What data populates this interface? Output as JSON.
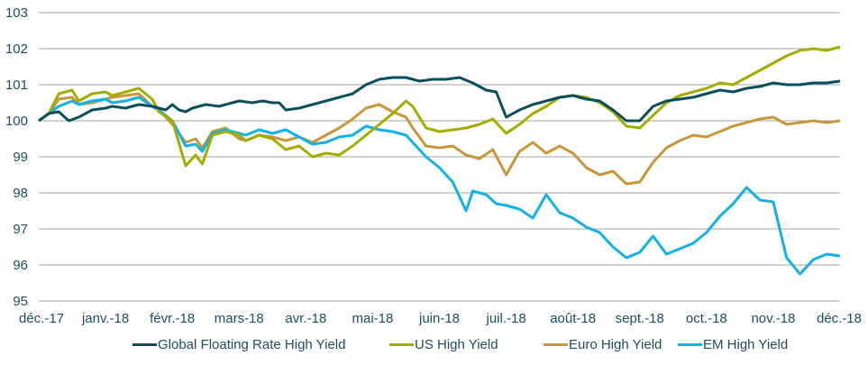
{
  "chart_data": {
    "type": "line",
    "title": "",
    "xlabel": "",
    "ylabel": "",
    "ylim": [
      95,
      103
    ],
    "yticks": [
      "95",
      "96",
      "97",
      "98",
      "99",
      "100",
      "101",
      "102",
      "103"
    ],
    "grid": true,
    "legend_position": "bottom",
    "categories": [
      "déc.-17",
      "janv.-18",
      "févr.-18",
      "mars-18",
      "avr.-18",
      "mai-18",
      "juin-18",
      "juil.-18",
      "août-18",
      "sept.-18",
      "oct.-18",
      "nov.-18",
      "déc.-18"
    ],
    "x_note": "x values are months since déc.-17 (0 = déc.-17, 12 = déc.-18)",
    "series": [
      {
        "name": "Global Floating Rate High Yield",
        "color": "#0b4f5c",
        "points": [
          [
            0,
            100.0
          ],
          [
            0.15,
            100.2
          ],
          [
            0.3,
            100.25
          ],
          [
            0.45,
            100.0
          ],
          [
            0.6,
            100.1
          ],
          [
            0.8,
            100.3
          ],
          [
            1.0,
            100.35
          ],
          [
            1.1,
            100.4
          ],
          [
            1.3,
            100.35
          ],
          [
            1.5,
            100.45
          ],
          [
            1.7,
            100.4
          ],
          [
            1.9,
            100.3
          ],
          [
            2.0,
            100.45
          ],
          [
            2.1,
            100.3
          ],
          [
            2.2,
            100.25
          ],
          [
            2.3,
            100.35
          ],
          [
            2.5,
            100.45
          ],
          [
            2.7,
            100.4
          ],
          [
            2.9,
            100.5
          ],
          [
            3.0,
            100.55
          ],
          [
            3.2,
            100.5
          ],
          [
            3.35,
            100.55
          ],
          [
            3.5,
            100.5
          ],
          [
            3.6,
            100.5
          ],
          [
            3.7,
            100.3
          ],
          [
            3.9,
            100.35
          ],
          [
            4.1,
            100.45
          ],
          [
            4.3,
            100.55
          ],
          [
            4.5,
            100.65
          ],
          [
            4.7,
            100.75
          ],
          [
            4.9,
            101.0
          ],
          [
            5.1,
            101.15
          ],
          [
            5.3,
            101.2
          ],
          [
            5.5,
            101.2
          ],
          [
            5.7,
            101.1
          ],
          [
            5.9,
            101.15
          ],
          [
            6.1,
            101.15
          ],
          [
            6.3,
            101.2
          ],
          [
            6.5,
            101.05
          ],
          [
            6.7,
            100.85
          ],
          [
            6.85,
            100.8
          ],
          [
            7.0,
            100.1
          ],
          [
            7.2,
            100.3
          ],
          [
            7.4,
            100.45
          ],
          [
            7.6,
            100.55
          ],
          [
            7.8,
            100.65
          ],
          [
            8.0,
            100.7
          ],
          [
            8.2,
            100.6
          ],
          [
            8.4,
            100.55
          ],
          [
            8.6,
            100.3
          ],
          [
            8.8,
            100.0
          ],
          [
            9.0,
            100.0
          ],
          [
            9.2,
            100.4
          ],
          [
            9.4,
            100.55
          ],
          [
            9.6,
            100.6
          ],
          [
            9.8,
            100.65
          ],
          [
            10.0,
            100.75
          ],
          [
            10.2,
            100.85
          ],
          [
            10.4,
            100.8
          ],
          [
            10.6,
            100.9
          ],
          [
            10.8,
            100.95
          ],
          [
            11.0,
            101.05
          ],
          [
            11.2,
            101.0
          ],
          [
            11.4,
            101.0
          ],
          [
            11.6,
            101.05
          ],
          [
            11.8,
            101.05
          ],
          [
            12.0,
            101.1
          ]
        ]
      },
      {
        "name": "US High Yield",
        "color": "#a2ad00",
        "points": [
          [
            0,
            100.0
          ],
          [
            0.15,
            100.2
          ],
          [
            0.3,
            100.75
          ],
          [
            0.5,
            100.85
          ],
          [
            0.6,
            100.55
          ],
          [
            0.8,
            100.75
          ],
          [
            1.0,
            100.8
          ],
          [
            1.1,
            100.7
          ],
          [
            1.3,
            100.8
          ],
          [
            1.5,
            100.9
          ],
          [
            1.7,
            100.6
          ],
          [
            1.8,
            100.25
          ],
          [
            2.0,
            100.0
          ],
          [
            2.2,
            98.75
          ],
          [
            2.35,
            99.05
          ],
          [
            2.45,
            98.8
          ],
          [
            2.6,
            99.6
          ],
          [
            2.8,
            99.7
          ],
          [
            3.0,
            99.6
          ],
          [
            3.1,
            99.45
          ],
          [
            3.3,
            99.6
          ],
          [
            3.5,
            99.5
          ],
          [
            3.7,
            99.2
          ],
          [
            3.9,
            99.3
          ],
          [
            4.1,
            99.0
          ],
          [
            4.3,
            99.1
          ],
          [
            4.5,
            99.05
          ],
          [
            4.7,
            99.3
          ],
          [
            4.9,
            99.6
          ],
          [
            5.1,
            99.9
          ],
          [
            5.3,
            100.2
          ],
          [
            5.5,
            100.55
          ],
          [
            5.6,
            100.4
          ],
          [
            5.8,
            99.8
          ],
          [
            6.0,
            99.7
          ],
          [
            6.2,
            99.75
          ],
          [
            6.4,
            99.8
          ],
          [
            6.6,
            99.9
          ],
          [
            6.8,
            100.05
          ],
          [
            7.0,
            99.65
          ],
          [
            7.2,
            99.9
          ],
          [
            7.4,
            100.2
          ],
          [
            7.6,
            100.4
          ],
          [
            7.8,
            100.65
          ],
          [
            8.0,
            100.7
          ],
          [
            8.2,
            100.65
          ],
          [
            8.4,
            100.5
          ],
          [
            8.6,
            100.25
          ],
          [
            8.8,
            99.85
          ],
          [
            9.0,
            99.8
          ],
          [
            9.2,
            100.15
          ],
          [
            9.4,
            100.5
          ],
          [
            9.6,
            100.7
          ],
          [
            9.8,
            100.8
          ],
          [
            10.0,
            100.9
          ],
          [
            10.2,
            101.05
          ],
          [
            10.4,
            101.0
          ],
          [
            10.6,
            101.2
          ],
          [
            10.8,
            101.4
          ],
          [
            11.0,
            101.6
          ],
          [
            11.2,
            101.8
          ],
          [
            11.4,
            101.95
          ],
          [
            11.6,
            102.0
          ],
          [
            11.8,
            101.95
          ],
          [
            12.0,
            102.05
          ]
        ]
      },
      {
        "name": "Euro High Yield",
        "color": "#c9973b",
        "points": [
          [
            0,
            100.0
          ],
          [
            0.15,
            100.2
          ],
          [
            0.3,
            100.6
          ],
          [
            0.5,
            100.65
          ],
          [
            0.6,
            100.45
          ],
          [
            0.8,
            100.5
          ],
          [
            1.0,
            100.6
          ],
          [
            1.1,
            100.65
          ],
          [
            1.3,
            100.7
          ],
          [
            1.5,
            100.75
          ],
          [
            1.7,
            100.4
          ],
          [
            1.8,
            100.3
          ],
          [
            2.0,
            99.9
          ],
          [
            2.2,
            99.4
          ],
          [
            2.35,
            99.5
          ],
          [
            2.45,
            99.25
          ],
          [
            2.6,
            99.7
          ],
          [
            2.8,
            99.8
          ],
          [
            3.0,
            99.5
          ],
          [
            3.1,
            99.45
          ],
          [
            3.3,
            99.6
          ],
          [
            3.5,
            99.55
          ],
          [
            3.7,
            99.45
          ],
          [
            3.9,
            99.55
          ],
          [
            4.1,
            99.4
          ],
          [
            4.3,
            99.6
          ],
          [
            4.5,
            99.8
          ],
          [
            4.7,
            100.05
          ],
          [
            4.9,
            100.35
          ],
          [
            5.1,
            100.45
          ],
          [
            5.3,
            100.25
          ],
          [
            5.5,
            100.1
          ],
          [
            5.6,
            99.8
          ],
          [
            5.8,
            99.3
          ],
          [
            6.0,
            99.25
          ],
          [
            6.2,
            99.3
          ],
          [
            6.4,
            99.05
          ],
          [
            6.6,
            98.95
          ],
          [
            6.8,
            99.2
          ],
          [
            7.0,
            98.5
          ],
          [
            7.2,
            99.15
          ],
          [
            7.4,
            99.4
          ],
          [
            7.6,
            99.1
          ],
          [
            7.8,
            99.3
          ],
          [
            8.0,
            99.1
          ],
          [
            8.2,
            98.7
          ],
          [
            8.4,
            98.5
          ],
          [
            8.6,
            98.6
          ],
          [
            8.8,
            98.25
          ],
          [
            9.0,
            98.3
          ],
          [
            9.2,
            98.85
          ],
          [
            9.4,
            99.25
          ],
          [
            9.6,
            99.45
          ],
          [
            9.8,
            99.6
          ],
          [
            10.0,
            99.55
          ],
          [
            10.2,
            99.7
          ],
          [
            10.4,
            99.85
          ],
          [
            10.6,
            99.95
          ],
          [
            10.8,
            100.05
          ],
          [
            11.0,
            100.1
          ],
          [
            11.2,
            99.9
          ],
          [
            11.4,
            99.95
          ],
          [
            11.6,
            100.0
          ],
          [
            11.8,
            99.95
          ],
          [
            12.0,
            100.0
          ]
        ]
      },
      {
        "name": "EM High Yield",
        "color": "#14b1e7",
        "points": [
          [
            0,
            100.0
          ],
          [
            0.15,
            100.2
          ],
          [
            0.3,
            100.4
          ],
          [
            0.5,
            100.55
          ],
          [
            0.6,
            100.45
          ],
          [
            0.8,
            100.55
          ],
          [
            1.0,
            100.6
          ],
          [
            1.1,
            100.5
          ],
          [
            1.3,
            100.55
          ],
          [
            1.5,
            100.65
          ],
          [
            1.7,
            100.4
          ],
          [
            1.8,
            100.3
          ],
          [
            2.0,
            100.0
          ],
          [
            2.2,
            99.3
          ],
          [
            2.35,
            99.35
          ],
          [
            2.45,
            99.15
          ],
          [
            2.6,
            99.65
          ],
          [
            2.8,
            99.75
          ],
          [
            3.0,
            99.65
          ],
          [
            3.1,
            99.6
          ],
          [
            3.3,
            99.75
          ],
          [
            3.5,
            99.65
          ],
          [
            3.7,
            99.75
          ],
          [
            3.9,
            99.55
          ],
          [
            4.1,
            99.35
          ],
          [
            4.3,
            99.4
          ],
          [
            4.5,
            99.55
          ],
          [
            4.7,
            99.6
          ],
          [
            4.9,
            99.85
          ],
          [
            5.1,
            99.75
          ],
          [
            5.3,
            99.7
          ],
          [
            5.5,
            99.6
          ],
          [
            5.6,
            99.4
          ],
          [
            5.8,
            99.0
          ],
          [
            6.0,
            98.7
          ],
          [
            6.2,
            98.3
          ],
          [
            6.4,
            97.5
          ],
          [
            6.5,
            98.05
          ],
          [
            6.7,
            97.95
          ],
          [
            6.85,
            97.7
          ],
          [
            7.0,
            97.65
          ],
          [
            7.2,
            97.55
          ],
          [
            7.4,
            97.3
          ],
          [
            7.6,
            97.95
          ],
          [
            7.8,
            97.45
          ],
          [
            8.0,
            97.3
          ],
          [
            8.2,
            97.05
          ],
          [
            8.4,
            96.9
          ],
          [
            8.6,
            96.5
          ],
          [
            8.8,
            96.2
          ],
          [
            9.0,
            96.35
          ],
          [
            9.2,
            96.8
          ],
          [
            9.4,
            96.3
          ],
          [
            9.6,
            96.45
          ],
          [
            9.8,
            96.6
          ],
          [
            10.0,
            96.9
          ],
          [
            10.2,
            97.35
          ],
          [
            10.4,
            97.7
          ],
          [
            10.6,
            98.15
          ],
          [
            10.8,
            97.8
          ],
          [
            11.0,
            97.75
          ],
          [
            11.2,
            96.2
          ],
          [
            11.4,
            95.75
          ],
          [
            11.6,
            96.15
          ],
          [
            11.8,
            96.3
          ],
          [
            12.0,
            96.25
          ]
        ]
      }
    ]
  }
}
